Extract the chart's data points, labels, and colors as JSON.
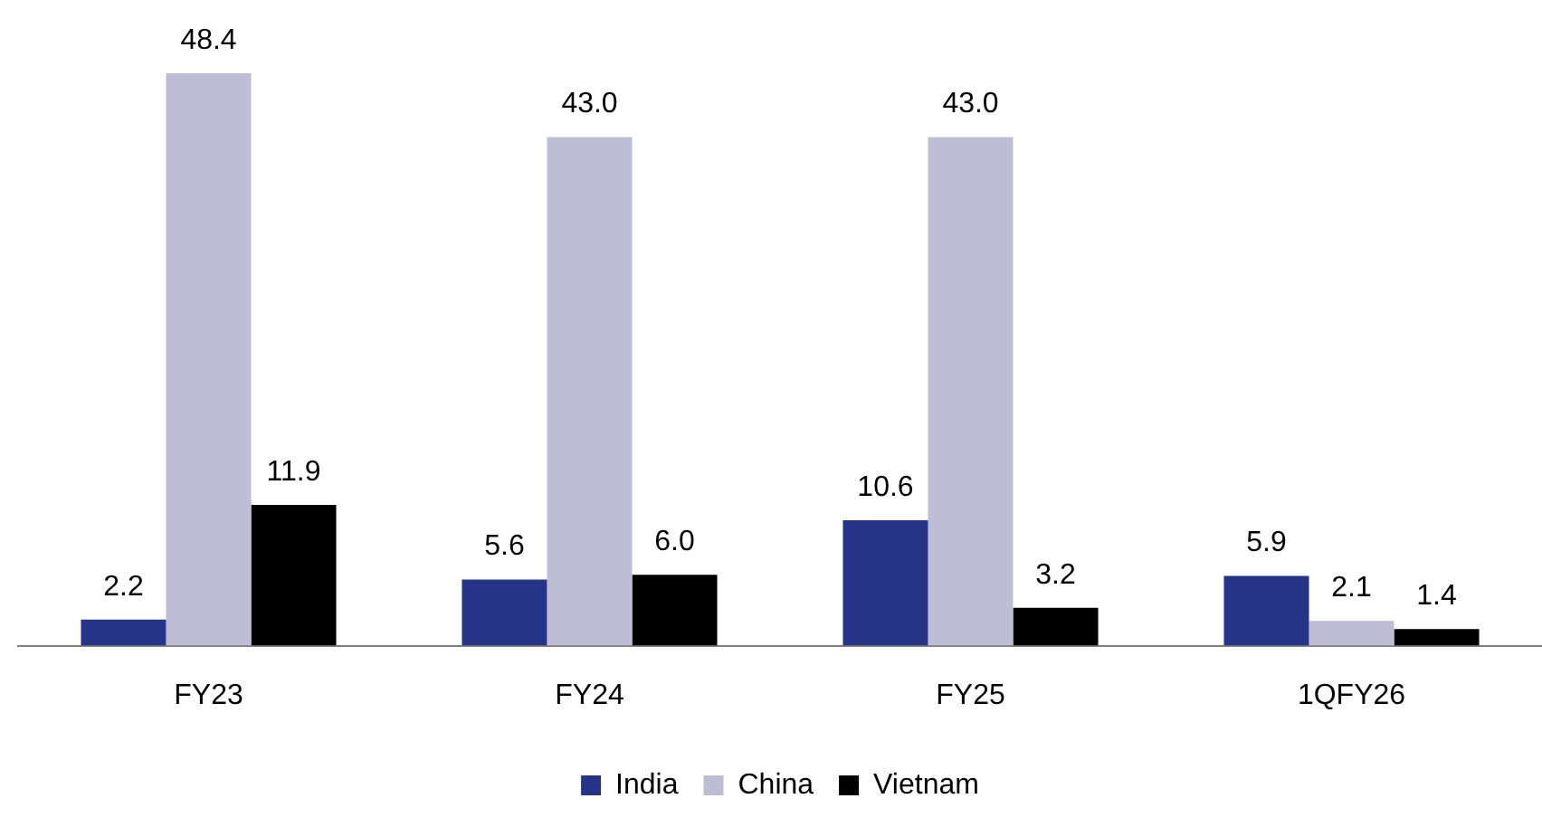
{
  "chart_data": {
    "type": "bar",
    "categories": [
      "FY23",
      "FY24",
      "FY25",
      "1QFY26"
    ],
    "series": [
      {
        "name": "India",
        "color": "#253487",
        "values": [
          2.2,
          5.6,
          10.6,
          5.9
        ],
        "value_labels": [
          "2.2",
          "5.6",
          "10.6",
          "5.9"
        ]
      },
      {
        "name": "China",
        "color": "#bfbdd6",
        "values": [
          48.4,
          43.0,
          43.0,
          2.1
        ],
        "value_labels": [
          "48.4",
          "43.0",
          "43.0",
          "2.1"
        ]
      },
      {
        "name": "Vietnam",
        "color": "#000000",
        "values": [
          11.9,
          6.0,
          3.2,
          1.4
        ],
        "value_labels": [
          "11.9",
          "6.0",
          "3.2",
          "1.4"
        ]
      }
    ],
    "grid": false,
    "legend": "bottom",
    "tick_labels": "x"
  }
}
